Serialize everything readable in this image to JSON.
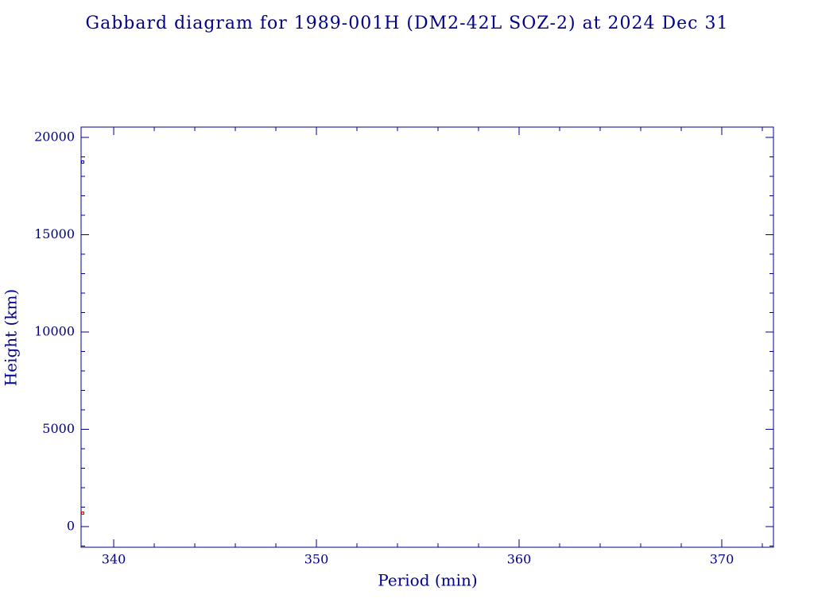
{
  "chart_data": {
    "type": "scatter",
    "title": "Gabbard diagram for 1989-001H (DM2-42L SOZ-2) at 2024 Dec 31",
    "x_label": "Period (min)",
    "y_label": "Height (km)",
    "x": [
      338.47
    ],
    "series": [
      {
        "color": "#0000ff",
        "values": [
          18735
        ]
      },
      {
        "color": "#ff0000",
        "values": [
          694
        ]
      }
    ],
    "xlim": [
      338.39,
      372.55
    ],
    "xticks": [
      340,
      350,
      360,
      370
    ],
    "xminorticks": [
      342,
      344,
      346,
      348,
      352,
      354,
      356,
      358,
      362,
      364,
      366,
      368,
      372
    ],
    "ylim": [
      -1061,
      20530
    ],
    "yticks": [
      0,
      5000,
      10000,
      15000,
      20000
    ],
    "yminorticks": [
      -1000,
      1000,
      2000,
      3000,
      4000,
      6000,
      7000,
      8000,
      9000,
      11000,
      12000,
      13000,
      14000,
      16000,
      17000,
      18000,
      19000
    ],
    "axis_color": "#00008b",
    "grid": false
  }
}
